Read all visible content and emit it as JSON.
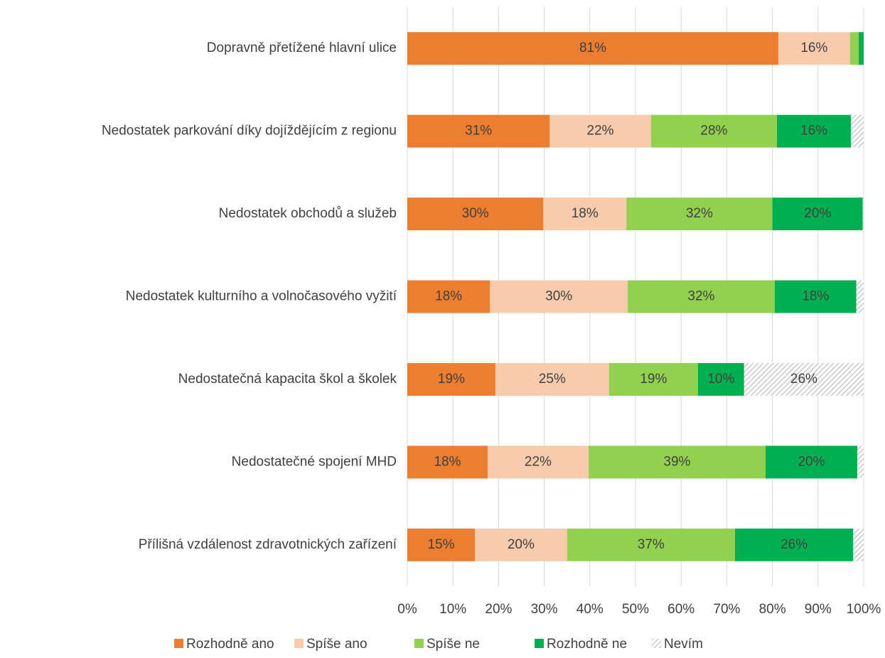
{
  "chart_data": {
    "type": "stacked-bar-horizontal",
    "categories": [
      "Dopravně přetížené hlavní ulice",
      "Nedostatek parkování díky dojíždějícím z regionu",
      "Nedostatek obchodů a služeb",
      "Nedostatek kulturního a volnočasového vyžití",
      "Nedostatečná kapacita škol a školek",
      "Nedostatečné spojení MHD",
      "Přílišná vzdálenost zdravotnických zařízení"
    ],
    "series": [
      {
        "name": "Rozhodně ano",
        "color": "#ED7D31",
        "values": [
          81.3,
          31.2,
          29.8,
          18.1,
          19.3,
          17.6,
          14.8
        ],
        "value_labels": [
          "81%",
          "31%",
          "30%",
          "18%",
          "19%",
          "18%",
          "15%"
        ]
      },
      {
        "name": "Spíše ano",
        "color": "#F8CBAD",
        "values": [
          15.7,
          22.2,
          18.2,
          30.2,
          24.9,
          22.1,
          20.2
        ],
        "value_labels": [
          "16%",
          "22%",
          "18%",
          "30%",
          "25%",
          "22%",
          "20%"
        ]
      },
      {
        "name": "Spíše ne",
        "color": "#92D050",
        "values": [
          1.9,
          27.6,
          32.0,
          32.2,
          19.5,
          38.8,
          36.8
        ],
        "value_labels": [
          null,
          "28%",
          "32%",
          "32%",
          "19%",
          "39%",
          "37%"
        ]
      },
      {
        "name": "Rozhodně ne",
        "color": "#00B050",
        "values": [
          1.1,
          16.2,
          19.8,
          17.9,
          10.1,
          20.1,
          25.9
        ],
        "value_labels": [
          null,
          "16%",
          "20%",
          "18%",
          "10%",
          "20%",
          "26%"
        ]
      },
      {
        "name": "Nevím",
        "color": "#bfbfbf",
        "pattern": "hatch",
        "values": [
          0,
          2.8,
          0.2,
          1.6,
          26.2,
          1.4,
          2.3
        ],
        "value_labels": [
          null,
          null,
          null,
          null,
          "26%",
          null,
          null
        ]
      }
    ],
    "xlim": [
      0,
      100
    ],
    "xticks": [
      {
        "value": 0,
        "label": "0%"
      },
      {
        "value": 10,
        "label": "10%"
      },
      {
        "value": 20,
        "label": "20%"
      },
      {
        "value": 30,
        "label": "30%"
      },
      {
        "value": 40,
        "label": "40%"
      },
      {
        "value": 50,
        "label": "50%"
      },
      {
        "value": 60,
        "label": "60%"
      },
      {
        "value": 70,
        "label": "70%"
      },
      {
        "value": 80,
        "label": "80%"
      },
      {
        "value": 90,
        "label": "90%"
      },
      {
        "value": 100,
        "label": "100%"
      }
    ],
    "grid": true,
    "legend": "bottom"
  }
}
